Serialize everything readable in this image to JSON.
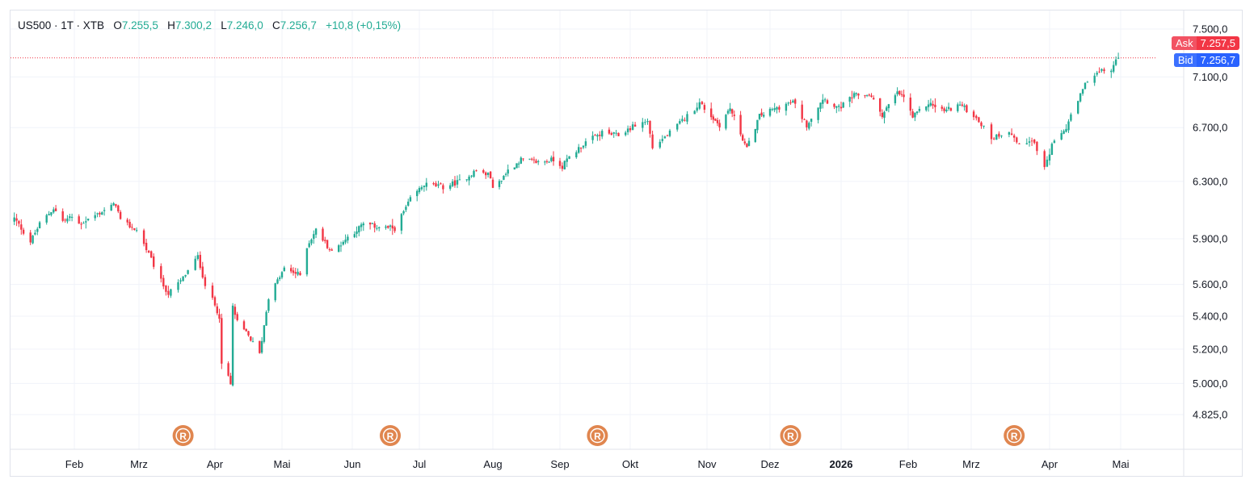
{
  "legend": {
    "symbol": "US500",
    "interval": "1T",
    "source": "XTB",
    "open_label": "O",
    "open": "7.255,5",
    "high_label": "H",
    "high": "7.300,2",
    "low_label": "L",
    "low": "7.246,0",
    "close_label": "C",
    "close": "7.256,7",
    "change": "+10,8 (+0,15%)"
  },
  "quotes": {
    "ask_label": "Ask",
    "ask": "7.257,5",
    "bid_label": "Bid",
    "bid": "7.256,7"
  },
  "event_marker_letter": "R",
  "colors": {
    "up": "#22ab94",
    "down": "#f23645",
    "ask": "#f23645",
    "bid": "#2962ff",
    "marker": "#e0864f"
  },
  "chart_data": {
    "type": "candlestick",
    "y_ticks": [
      {
        "value": 7500,
        "label": "7.500,0"
      },
      {
        "value": 7100,
        "label": "7.100,0"
      },
      {
        "value": 6700,
        "label": "6.700,0"
      },
      {
        "value": 6300,
        "label": "6.300,0"
      },
      {
        "value": 5900,
        "label": "5.900,0"
      },
      {
        "value": 5600,
        "label": "5.600,0"
      },
      {
        "value": 5400,
        "label": "5.400,0"
      },
      {
        "value": 5200,
        "label": "5.200,0"
      },
      {
        "value": 5000,
        "label": "5.000,0"
      },
      {
        "value": 4825,
        "label": "4.825,0"
      }
    ],
    "x_ticks": [
      {
        "date": "2025-02-01",
        "label": "Feb",
        "bold": false
      },
      {
        "date": "2025-03-01",
        "label": "Mrz",
        "bold": false
      },
      {
        "date": "2025-04-01",
        "label": "Apr",
        "bold": false
      },
      {
        "date": "2025-05-01",
        "label": "Mai",
        "bold": false
      },
      {
        "date": "2025-06-01",
        "label": "Jun",
        "bold": false
      },
      {
        "date": "2025-07-01",
        "label": "Jul",
        "bold": false
      },
      {
        "date": "2025-08-01",
        "label": "Aug",
        "bold": false
      },
      {
        "date": "2025-09-01",
        "label": "Sep",
        "bold": false
      },
      {
        "date": "2025-10-01",
        "label": "Okt",
        "bold": false
      },
      {
        "date": "2025-11-01",
        "label": "Nov",
        "bold": false
      },
      {
        "date": "2025-12-01",
        "label": "Dez",
        "bold": false
      },
      {
        "date": "2026-01-01",
        "label": "2026",
        "bold": true
      },
      {
        "date": "2026-02-01",
        "label": "Feb",
        "bold": false
      },
      {
        "date": "2026-03-01",
        "label": "Mrz",
        "bold": false
      },
      {
        "date": "2026-04-01",
        "label": "Apr",
        "bold": false
      },
      {
        "date": "2026-05-01",
        "label": "Mai",
        "bold": false
      }
    ],
    "event_markers": [
      "2025-03-19",
      "2025-06-18",
      "2025-09-17",
      "2025-12-10",
      "2026-03-18"
    ],
    "current_price": 7256.7,
    "anchors": [
      [
        "2025-01-06",
        6040
      ],
      [
        "2025-01-13",
        5880
      ],
      [
        "2025-01-17",
        6000
      ],
      [
        "2025-01-23",
        6110
      ],
      [
        "2025-01-27",
        6020
      ],
      [
        "2025-01-31",
        6050
      ],
      [
        "2025-02-03",
        6000
      ],
      [
        "2025-02-10",
        6060
      ],
      [
        "2025-02-19",
        6140
      ],
      [
        "2025-02-21",
        6020
      ],
      [
        "2025-02-28",
        5960
      ],
      [
        "2025-03-04",
        5830
      ],
      [
        "2025-03-10",
        5620
      ],
      [
        "2025-03-13",
        5540
      ],
      [
        "2025-03-18",
        5620
      ],
      [
        "2025-03-25",
        5780
      ],
      [
        "2025-03-28",
        5600
      ],
      [
        "2025-04-03",
        5400
      ],
      [
        "2025-04-04",
        5100
      ],
      [
        "2025-04-07",
        5040
      ],
      [
        "2025-04-08",
        4990
      ],
      [
        "2025-04-09",
        5460
      ],
      [
        "2025-04-11",
        5360
      ],
      [
        "2025-04-16",
        5280
      ],
      [
        "2025-04-21",
        5170
      ],
      [
        "2025-04-25",
        5520
      ],
      [
        "2025-05-02",
        5700
      ],
      [
        "2025-05-09",
        5660
      ],
      [
        "2025-05-12",
        5850
      ],
      [
        "2025-05-16",
        5960
      ],
      [
        "2025-05-23",
        5810
      ],
      [
        "2025-05-30",
        5910
      ],
      [
        "2025-06-06",
        6000
      ],
      [
        "2025-06-13",
        5980
      ],
      [
        "2025-06-20",
        5970
      ],
      [
        "2025-06-27",
        6170
      ],
      [
        "2025-07-03",
        6280
      ],
      [
        "2025-07-11",
        6260
      ],
      [
        "2025-07-18",
        6300
      ],
      [
        "2025-07-25",
        6380
      ],
      [
        "2025-07-31",
        6340
      ],
      [
        "2025-08-01",
        6240
      ],
      [
        "2025-08-08",
        6380
      ],
      [
        "2025-08-14",
        6460
      ],
      [
        "2025-08-22",
        6440
      ],
      [
        "2025-08-29",
        6460
      ],
      [
        "2025-09-02",
        6410
      ],
      [
        "2025-09-05",
        6480
      ],
      [
        "2025-09-12",
        6590
      ],
      [
        "2025-09-19",
        6660
      ],
      [
        "2025-09-26",
        6640
      ],
      [
        "2025-10-03",
        6720
      ],
      [
        "2025-10-08",
        6750
      ],
      [
        "2025-10-10",
        6550
      ],
      [
        "2025-10-17",
        6660
      ],
      [
        "2025-10-24",
        6790
      ],
      [
        "2025-10-29",
        6890
      ],
      [
        "2025-11-04",
        6770
      ],
      [
        "2025-11-07",
        6720
      ],
      [
        "2025-11-12",
        6850
      ],
      [
        "2025-11-20",
        6540
      ],
      [
        "2025-11-26",
        6790
      ],
      [
        "2025-12-05",
        6860
      ],
      [
        "2025-12-11",
        6900
      ],
      [
        "2025-12-17",
        6720
      ],
      [
        "2025-12-24",
        6930
      ],
      [
        "2025-12-31",
        6850
      ],
      [
        "2026-01-07",
        6950
      ],
      [
        "2026-01-14",
        6960
      ],
      [
        "2026-01-20",
        6800
      ],
      [
        "2026-01-27",
        6970
      ],
      [
        "2026-01-30",
        6940
      ],
      [
        "2026-02-03",
        6780
      ],
      [
        "2026-02-10",
        6890
      ],
      [
        "2026-02-17",
        6830
      ],
      [
        "2026-02-24",
        6880
      ],
      [
        "2026-03-03",
        6780
      ],
      [
        "2026-03-09",
        6620
      ],
      [
        "2026-03-16",
        6680
      ],
      [
        "2026-03-20",
        6560
      ],
      [
        "2026-03-25",
        6620
      ],
      [
        "2026-03-30",
        6400
      ],
      [
        "2026-04-02",
        6560
      ],
      [
        "2026-04-08",
        6700
      ],
      [
        "2026-04-14",
        6950
      ],
      [
        "2026-04-17",
        7080
      ],
      [
        "2026-04-22",
        7140
      ],
      [
        "2026-04-27",
        7160
      ],
      [
        "2026-04-30",
        7256.7
      ]
    ]
  }
}
